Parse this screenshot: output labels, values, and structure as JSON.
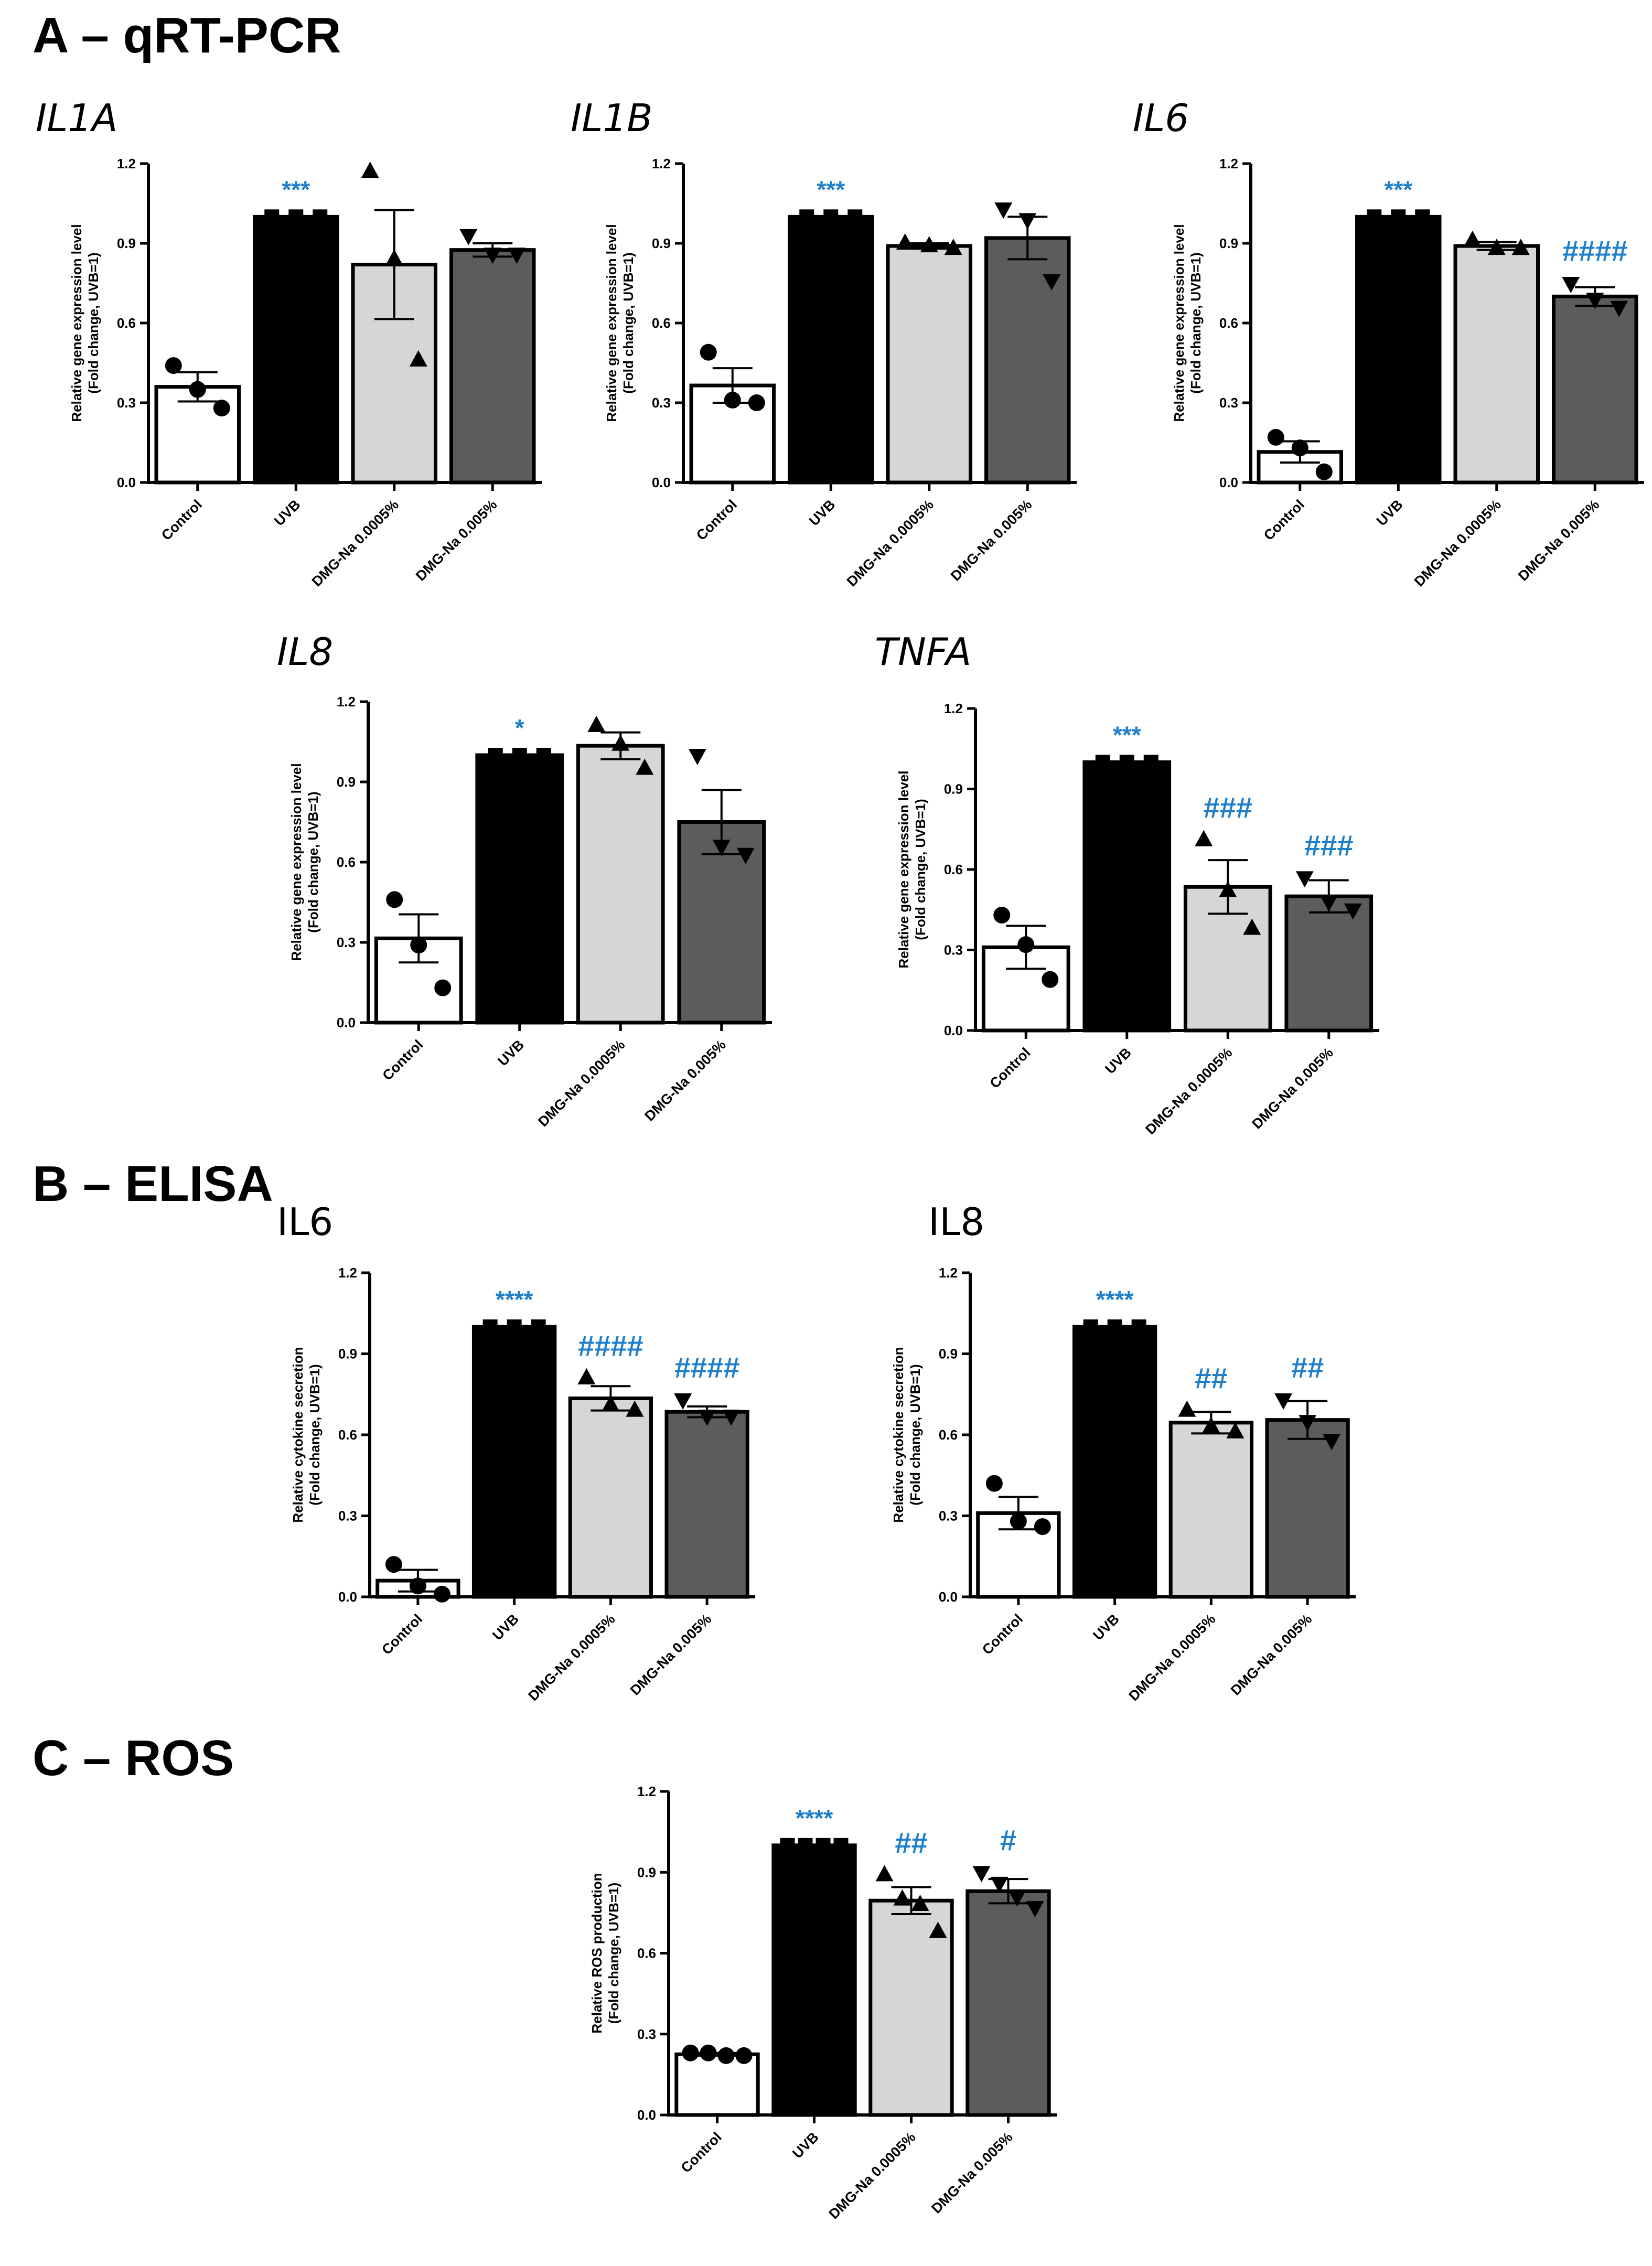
{
  "sections": [
    {
      "label": "A – qRT-PCR"
    },
    {
      "label": "B – ELISA"
    },
    {
      "label": "C – ROS"
    }
  ],
  "colors": {
    "control": "#ffffff",
    "uvb": "#000000",
    "dmg_low": "#d6d6d6",
    "dmg_high": "#5c5c5c",
    "significance": "#1f7fc9"
  },
  "chart_data": [
    {
      "type": "bar",
      "title": "IL1A",
      "section": "A – qRT-PCR",
      "categories": [
        "Control",
        "UVB",
        "DMG-Na 0.0005%",
        "DMG-Na 0.005%"
      ],
      "values": [
        0.36,
        1.0,
        0.82,
        0.875
      ],
      "errors": [
        0.055,
        0,
        0.205,
        0.025
      ],
      "points": [
        [
          0.44,
          0.35,
          0.28
        ],
        [
          1.0,
          1.0,
          1.0
        ],
        [
          1.17,
          0.84,
          0.46
        ],
        [
          0.93,
          0.86,
          0.86
        ]
      ],
      "markers": [
        "circle",
        "square",
        "triangle-up",
        "triangle-down"
      ],
      "significance": [
        "",
        "***",
        "",
        ""
      ],
      "ylabel_line1": "Relative gene expression level",
      "ylabel_line2": "(Fold change, UVB=1)",
      "ylim": [
        0,
        1.2
      ],
      "yticks": [
        "0.0",
        "0.3",
        "0.6",
        "0.9",
        "1.2"
      ]
    },
    {
      "type": "bar",
      "title": "IL1B",
      "section": "A – qRT-PCR",
      "categories": [
        "Control",
        "UVB",
        "DMG-Na 0.0005%",
        "DMG-Na 0.005%"
      ],
      "values": [
        0.365,
        1.0,
        0.89,
        0.92
      ],
      "errors": [
        0.065,
        0,
        0.01,
        0.08
      ],
      "points": [
        [
          0.49,
          0.31,
          0.3
        ],
        [
          1.0,
          1.0,
          1.0
        ],
        [
          0.9,
          0.89,
          0.88
        ],
        [
          1.03,
          0.99,
          0.76
        ]
      ],
      "markers": [
        "circle",
        "square",
        "triangle-up",
        "triangle-down"
      ],
      "significance": [
        "",
        "***",
        "",
        ""
      ],
      "ylabel_line1": "Relative gene expression level",
      "ylabel_line2": "(Fold change, UVB=1)",
      "ylim": [
        0,
        1.2
      ],
      "yticks": [
        "0.0",
        "0.3",
        "0.6",
        "0.9",
        "1.2"
      ]
    },
    {
      "type": "bar",
      "title": "IL6",
      "section": "A – qRT-PCR",
      "categories": [
        "Control",
        "UVB",
        "DMG-Na 0.0005%",
        "DMG-Na 0.005%"
      ],
      "values": [
        0.115,
        1.0,
        0.89,
        0.7
      ],
      "errors": [
        0.04,
        0,
        0.015,
        0.035
      ],
      "points": [
        [
          0.17,
          0.13,
          0.04
        ],
        [
          1.0,
          1.0,
          1.0
        ],
        [
          0.91,
          0.88,
          0.88
        ],
        [
          0.75,
          0.69,
          0.66
        ]
      ],
      "markers": [
        "circle",
        "square",
        "triangle-up",
        "triangle-down"
      ],
      "significance": [
        "",
        "***",
        "",
        "####"
      ],
      "ylabel_line1": "Relative gene expression level",
      "ylabel_line2": "(Fold change, UVB=1)",
      "ylim": [
        0,
        1.2
      ],
      "yticks": [
        "0.0",
        "0.3",
        "0.6",
        "0.9",
        "1.2"
      ]
    },
    {
      "type": "bar",
      "title": "IL8",
      "section": "A – qRT-PCR",
      "categories": [
        "Control",
        "UVB",
        "DMG-Na 0.0005%",
        "DMG-Na 0.005%"
      ],
      "values": [
        0.315,
        1.0,
        1.035,
        0.75
      ],
      "errors": [
        0.09,
        0,
        0.05,
        0.12
      ],
      "points": [
        [
          0.46,
          0.29,
          0.13
        ],
        [
          1.0,
          1.0,
          1.0
        ],
        [
          1.11,
          1.04,
          0.95
        ],
        [
          1.0,
          0.66,
          0.63
        ]
      ],
      "markers": [
        "circle",
        "square",
        "triangle-up",
        "triangle-down"
      ],
      "significance": [
        "",
        "*",
        "",
        ""
      ],
      "ylabel_line1": "Relative gene expression level",
      "ylabel_line2": "(Fold change, UVB=1)",
      "ylim": [
        0,
        1.2
      ],
      "yticks": [
        "0.0",
        "0.3",
        "0.6",
        "0.9",
        "1.2"
      ]
    },
    {
      "type": "bar",
      "title": "TNFA",
      "section": "A – qRT-PCR",
      "categories": [
        "Control",
        "UVB",
        "DMG-Na 0.0005%",
        "DMG-Na 0.005%"
      ],
      "values": [
        0.31,
        1.0,
        0.535,
        0.5
      ],
      "errors": [
        0.08,
        0,
        0.1,
        0.06
      ],
      "points": [
        [
          0.43,
          0.32,
          0.19
        ],
        [
          1.0,
          1.0,
          1.0
        ],
        [
          0.71,
          0.52,
          0.38
        ],
        [
          0.57,
          0.48,
          0.45
        ]
      ],
      "markers": [
        "circle",
        "square",
        "triangle-up",
        "triangle-down"
      ],
      "significance": [
        "",
        "***",
        "###",
        "###"
      ],
      "ylabel_line1": "Relative gene expression level",
      "ylabel_line2": "(Fold change, UVB=1)",
      "ylim": [
        0,
        1.2
      ],
      "yticks": [
        "0.0",
        "0.3",
        "0.6",
        "0.9",
        "1.2"
      ]
    },
    {
      "type": "bar",
      "title": "IL6",
      "section": "B – ELISA",
      "categories": [
        "Control",
        "UVB",
        "DMG-Na 0.0005%",
        "DMG-Na 0.005%"
      ],
      "values": [
        0.06,
        1.0,
        0.735,
        0.685
      ],
      "errors": [
        0.04,
        0,
        0.045,
        0.02
      ],
      "points": [
        [
          0.12,
          0.04,
          0.01
        ],
        [
          1.0,
          1.0,
          1.0
        ],
        [
          0.81,
          0.71,
          0.69
        ],
        [
          0.73,
          0.67,
          0.67
        ]
      ],
      "markers": [
        "circle",
        "square",
        "triangle-up",
        "triangle-down"
      ],
      "significance": [
        "",
        "****",
        "####",
        "####"
      ],
      "ylabel_line1": "Relative cytokine secretion",
      "ylabel_line2": "(Fold change, UVB=1)",
      "ylim": [
        0,
        1.2
      ],
      "yticks": [
        "0.0",
        "0.3",
        "0.6",
        "0.9",
        "1.2"
      ]
    },
    {
      "type": "bar",
      "title": "IL8",
      "section": "B – ELISA",
      "categories": [
        "Control",
        "UVB",
        "DMG-Na 0.0005%",
        "DMG-Na 0.005%"
      ],
      "values": [
        0.31,
        1.0,
        0.645,
        0.655
      ],
      "errors": [
        0.06,
        0,
        0.04,
        0.07
      ],
      "points": [
        [
          0.42,
          0.28,
          0.26
        ],
        [
          1.0,
          1.0,
          1.0
        ],
        [
          0.69,
          0.63,
          0.61
        ],
        [
          0.73,
          0.65,
          0.58
        ]
      ],
      "markers": [
        "circle",
        "square",
        "triangle-up",
        "triangle-down"
      ],
      "significance": [
        "",
        "****",
        "##",
        "##"
      ],
      "ylabel_line1": "Relative cytokine secretion",
      "ylabel_line2": "(Fold change, UVB=1)",
      "ylim": [
        0,
        1.2
      ],
      "yticks": [
        "0.0",
        "0.3",
        "0.6",
        "0.9",
        "1.2"
      ]
    },
    {
      "type": "bar",
      "title": "",
      "section": "C – ROS",
      "categories": [
        "Control",
        "UVB",
        "DMG-Na 0.0005%",
        "DMG-Na 0.005%"
      ],
      "values": [
        0.225,
        1.0,
        0.795,
        0.83
      ],
      "errors": [
        0.005,
        0,
        0.05,
        0.045
      ],
      "points": [
        [
          0.23,
          0.23,
          0.22,
          0.22
        ],
        [
          1.0,
          1.0,
          1.0,
          1.0
        ],
        [
          0.89,
          0.8,
          0.78,
          0.68
        ],
        [
          0.9,
          0.86,
          0.81,
          0.77
        ]
      ],
      "markers": [
        "circle",
        "square",
        "triangle-up",
        "triangle-down"
      ],
      "significance": [
        "",
        "****",
        "##",
        "#"
      ],
      "ylabel_line1": "Relative ROS production",
      "ylabel_line2": "(Fold change, UVB=1)",
      "ylim": [
        0,
        1.2
      ],
      "yticks": [
        "0.0",
        "0.3",
        "0.6",
        "0.9",
        "1.2"
      ]
    }
  ]
}
